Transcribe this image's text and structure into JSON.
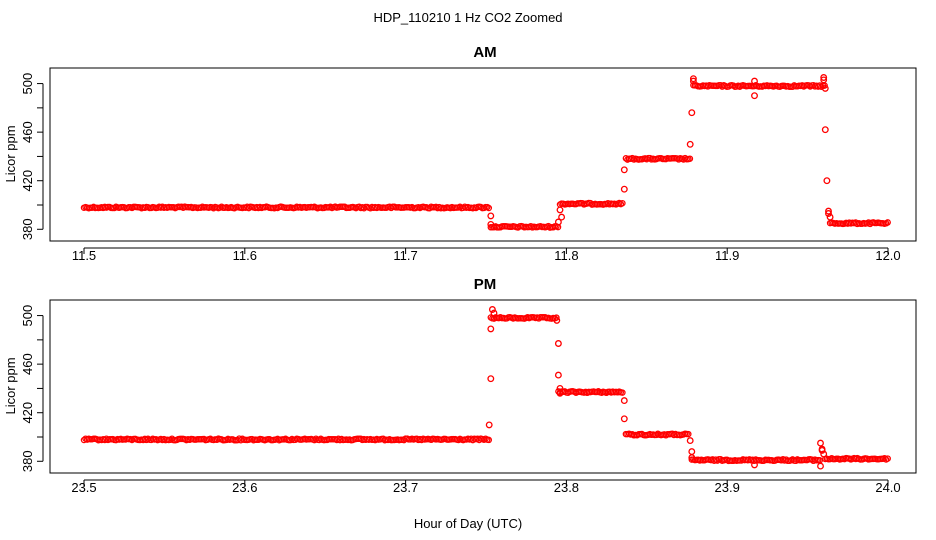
{
  "chart_data": {
    "type": "scatter",
    "title": "HDP_110210  1 Hz CO2 Zoomed",
    "xlabel": "Hour of Day (UTC)",
    "marker_color": "#ff0000",
    "panels": [
      {
        "title": "AM",
        "ylabel": "Licor ppm",
        "xlim": [
          11.5,
          12.0
        ],
        "ylim": [
          372,
          512
        ],
        "x_ticks": [
          "11.5",
          "11.6",
          "11.7",
          "11.8",
          "11.9",
          "12.0"
        ],
        "y_ticks": [
          "380",
          "420",
          "460",
          "500"
        ],
        "segments": [
          {
            "x_start": 11.5,
            "x_end": 11.752,
            "y": 398
          },
          {
            "x_start": 11.753,
            "x_end": 11.795,
            "y": 382
          },
          {
            "x_start": 11.796,
            "x_end": 11.835,
            "y": 401
          },
          {
            "x_start": 11.837,
            "x_end": 11.877,
            "y": 438
          },
          {
            "x_start": 11.879,
            "x_end": 11.961,
            "y": 498
          },
          {
            "x_start": 11.964,
            "x_end": 12.0,
            "y": 385
          }
        ],
        "points": [
          [
            11.753,
            391
          ],
          [
            11.753,
            384
          ],
          [
            11.795,
            386
          ],
          [
            11.796,
            396
          ],
          [
            11.797,
            390
          ],
          [
            11.836,
            429
          ],
          [
            11.836,
            413
          ],
          [
            11.877,
            450
          ],
          [
            11.878,
            476
          ],
          [
            11.879,
            504
          ],
          [
            11.879,
            502
          ],
          [
            11.917,
            502
          ],
          [
            11.917,
            490
          ],
          [
            11.96,
            505
          ],
          [
            11.96,
            503
          ],
          [
            11.961,
            496
          ],
          [
            11.961,
            462
          ],
          [
            11.962,
            420
          ],
          [
            11.963,
            395
          ],
          [
            11.963,
            393
          ],
          [
            11.964,
            390
          ]
        ]
      },
      {
        "title": "PM",
        "ylabel": "Licor ppm",
        "xlim": [
          23.5,
          24.0
        ],
        "ylim": [
          372,
          512
        ],
        "x_ticks": [
          "23.5",
          "23.6",
          "23.7",
          "23.8",
          "23.9",
          "24.0"
        ],
        "y_ticks": [
          "380",
          "420",
          "460",
          "500"
        ],
        "segments": [
          {
            "x_start": 23.5,
            "x_end": 23.752,
            "y": 398
          },
          {
            "x_start": 23.753,
            "x_end": 23.794,
            "y": 498
          },
          {
            "x_start": 23.795,
            "x_end": 23.835,
            "y": 437
          },
          {
            "x_start": 23.837,
            "x_end": 23.876,
            "y": 402
          },
          {
            "x_start": 23.878,
            "x_end": 23.958,
            "y": 381
          },
          {
            "x_start": 23.961,
            "x_end": 24.0,
            "y": 382
          }
        ],
        "points": [
          [
            23.752,
            410
          ],
          [
            23.753,
            448
          ],
          [
            23.753,
            489
          ],
          [
            23.754,
            505
          ],
          [
            23.755,
            502
          ],
          [
            23.794,
            496
          ],
          [
            23.795,
            477
          ],
          [
            23.795,
            451
          ],
          [
            23.796,
            440
          ],
          [
            23.796,
            436
          ],
          [
            23.836,
            430
          ],
          [
            23.836,
            415
          ],
          [
            23.877,
            397
          ],
          [
            23.878,
            388
          ],
          [
            23.878,
            383
          ],
          [
            23.917,
            377
          ],
          [
            23.958,
            376
          ],
          [
            23.958,
            395
          ],
          [
            23.959,
            390
          ],
          [
            23.959,
            389
          ],
          [
            23.96,
            386
          ]
        ]
      }
    ]
  }
}
